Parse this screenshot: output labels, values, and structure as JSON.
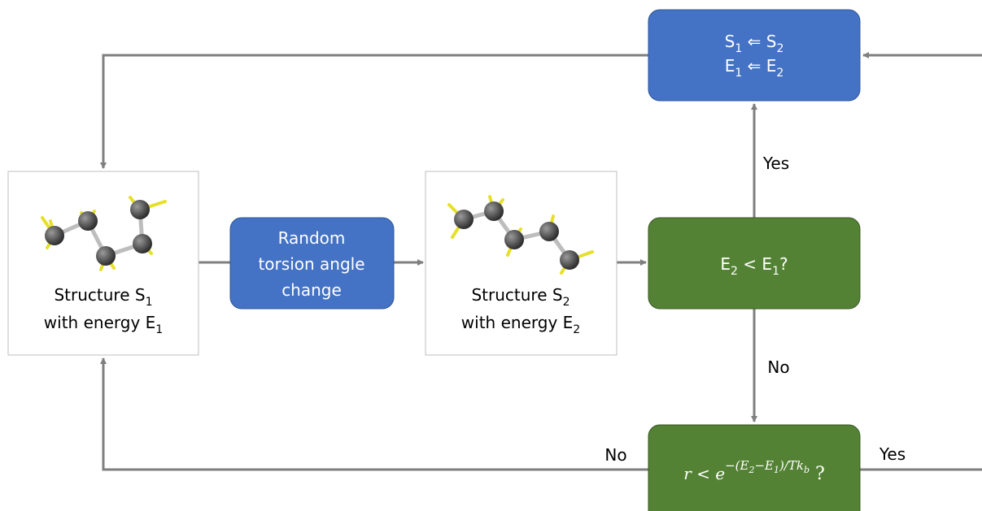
{
  "nodes": [
    {
      "lines": [
        [
          "Structure S",
          "1"
        ],
        [
          "with energy E",
          "1"
        ]
      ]
    },
    {
      "lines": [
        [
          "Random"
        ],
        [
          "torsion angle"
        ],
        [
          "change"
        ]
      ]
    },
    {
      "lines": [
        [
          "Structure S",
          "2"
        ],
        [
          "with energy E",
          "2"
        ]
      ]
    },
    {
      "lines": [
        [
          "E",
          "2",
          " < E",
          "1",
          "?"
        ]
      ]
    },
    {
      "lines": [
        [
          "S",
          "1",
          " ⇐ S",
          "2"
        ],
        [
          "E",
          "1",
          " ⇐ E",
          "2"
        ]
      ]
    },
    {
      "formula": {
        "base": "r < e",
        "exponent": [
          "−(E",
          "2",
          "−E",
          "1",
          ")/Tk",
          "b"
        ],
        "end": " ?"
      }
    }
  ],
  "edge_labels": [
    "Yes",
    "No",
    "No",
    "Yes"
  ]
}
